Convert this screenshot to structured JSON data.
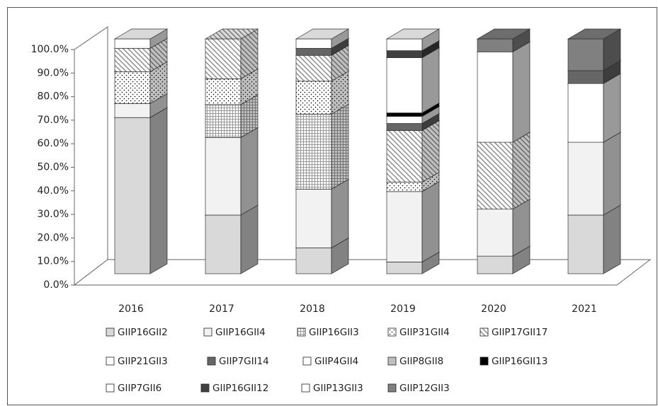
{
  "chart_data": {
    "type": "bar3d_stacked",
    "categories": [
      "2016",
      "2017",
      "2018",
      "2019",
      "2020",
      "2021"
    ],
    "ylim": [
      0,
      100
    ],
    "yticks": [
      {
        "value": 0,
        "label": "0.0%"
      },
      {
        "value": 10,
        "label": "10.0%"
      },
      {
        "value": 20,
        "label": "20.0%"
      },
      {
        "value": 30,
        "label": "30.0%"
      },
      {
        "value": 40,
        "label": "40.0%"
      },
      {
        "value": 50,
        "label": "50.0%"
      },
      {
        "value": 60,
        "label": "60.0%"
      },
      {
        "value": 70,
        "label": "70.0%"
      },
      {
        "value": 80,
        "label": "80.0%"
      },
      {
        "value": 90,
        "label": "90.0%"
      },
      {
        "value": 100,
        "label": "100.0%"
      }
    ],
    "series": [
      {
        "name": "GIIP16GII2",
        "color": "#d9d9d9",
        "values": [
          66.5,
          25,
          11,
          5,
          7.5,
          25
        ]
      },
      {
        "name": "GIIP16GII4",
        "color": "#f2f2f2",
        "values": [
          6,
          33,
          25,
          30,
          20,
          31
        ]
      },
      {
        "name": "GIIP16GII3",
        "color": "#ffffff",
        "pattern": "grid",
        "values": [
          null,
          14,
          32,
          null,
          null,
          null
        ]
      },
      {
        "name": "GIIP31GII4",
        "color": "#ffffff",
        "pattern": "dots",
        "values": [
          13.5,
          11,
          14,
          4,
          null,
          null
        ]
      },
      {
        "name": "GIIP17GII17",
        "color": "#ffffff",
        "pattern": "hatch",
        "values": [
          10,
          17,
          11,
          22,
          28.5,
          null
        ]
      },
      {
        "name": "GIIP21GII3",
        "color": "#ffffff",
        "values": [
          null,
          null,
          null,
          null,
          38.5,
          25
        ]
      },
      {
        "name": "GIIP7GII14",
        "color": "#666666",
        "values": [
          null,
          null,
          3,
          3,
          null,
          5.5
        ]
      },
      {
        "name": "GIIP4GII4",
        "color": "#ffffff",
        "values": [
          null,
          null,
          null,
          3,
          null,
          null
        ]
      },
      {
        "name": "GIIP8GII8",
        "color": "#bfbfbf",
        "values": [
          null,
          null,
          null,
          null,
          null,
          null
        ]
      },
      {
        "name": "GIIP16GII13",
        "color": "#000000",
        "values": [
          null,
          null,
          null,
          1.5,
          null,
          null
        ]
      },
      {
        "name": "GIIP7GII6",
        "color": "#ffffff",
        "values": [
          null,
          null,
          null,
          23.5,
          null,
          null
        ]
      },
      {
        "name": "GIIP16GII12",
        "color": "#404040",
        "values": [
          null,
          null,
          null,
          3,
          null,
          null
        ]
      },
      {
        "name": "GIIP13GII3",
        "color": "#ffffff",
        "values": [
          4,
          null,
          4,
          5,
          null,
          null
        ]
      },
      {
        "name": "GIIP12GII3",
        "color": "#808080",
        "values": [
          null,
          null,
          null,
          null,
          5.5,
          13.5
        ]
      }
    ]
  }
}
